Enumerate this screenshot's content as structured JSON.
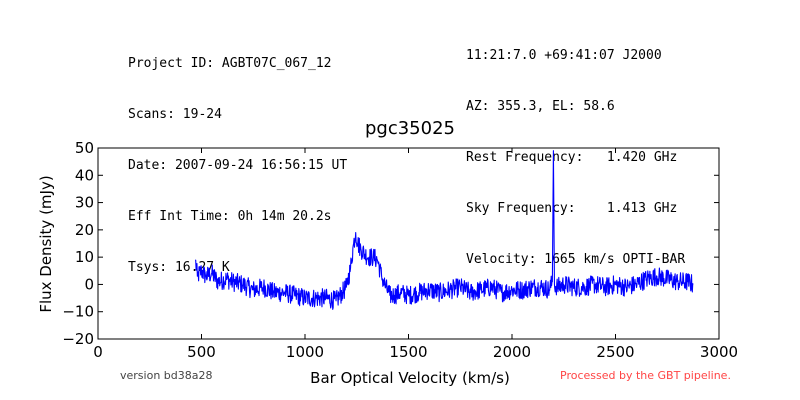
{
  "header_left": [
    "Project ID: AGBT07C_067_12",
    "Scans: 19-24",
    "Date: 2007-09-24 16:56:15 UT",
    "Eff Int Time: 0h 14m 20.2s",
    "Tsys: 16.27 K"
  ],
  "header_right": [
    "11:21:7.0 +69:41:07 J2000",
    "AZ: 355.3, EL: 58.6",
    "Rest Frequency:   1.420 GHz",
    "Sky Frequency:    1.413 GHz",
    "Velocity: 1665 km/s OPTI-BAR"
  ],
  "footer": {
    "version": "version bd38a28",
    "pipeline": "Processed by the GBT pipeline.",
    "pipeline_color": "#ff4444"
  },
  "chart_data": {
    "type": "line",
    "title": "pgc35025",
    "xlabel": "Bar Optical Velocity (km/s)",
    "ylabel": "Flux Density (mJy)",
    "xlim": [
      0,
      3000
    ],
    "ylim": [
      -20,
      50
    ],
    "xticks": [
      0,
      500,
      1000,
      1500,
      2000,
      2500,
      3000
    ],
    "yticks": [
      -20,
      -10,
      0,
      10,
      20,
      30,
      40,
      50
    ],
    "grid": false,
    "line_color": "#0000ff",
    "series": [
      {
        "x": [
          470,
          480,
          500,
          520,
          550,
          580,
          620,
          650,
          700,
          750,
          800,
          850,
          900,
          950,
          1000,
          1050,
          1100,
          1150,
          1180,
          1200,
          1220,
          1235,
          1245,
          1255,
          1270,
          1290,
          1310,
          1330,
          1350,
          1370,
          1390,
          1410,
          1430,
          1460,
          1500,
          1550,
          1600,
          1650,
          1700,
          1750,
          1800,
          1850,
          1900,
          1950,
          2000,
          2050,
          2100,
          2150,
          2180,
          2195,
          2200,
          2205,
          2220,
          2250,
          2300,
          2350,
          2400,
          2450,
          2500,
          2550,
          2600,
          2650,
          2700,
          2750,
          2800,
          2850,
          2875
        ],
        "y": [
          9,
          3,
          5,
          3,
          4,
          1,
          2,
          1,
          0,
          -2,
          -1,
          -3,
          -3,
          -4,
          -5,
          -5,
          -5,
          -6,
          -3,
          -1,
          6,
          15,
          19,
          15,
          13,
          11,
          10,
          10,
          9,
          3,
          -1,
          -4,
          -4,
          -3,
          -4,
          -3,
          -2,
          -3,
          -2,
          -1,
          -3,
          -2,
          -1,
          -3,
          -2,
          -2,
          -1,
          -1,
          -2,
          1,
          49,
          0,
          -1,
          0,
          -1,
          -1,
          0,
          -1,
          0,
          -1,
          0,
          2,
          3,
          2,
          1,
          1,
          0
        ]
      }
    ]
  }
}
